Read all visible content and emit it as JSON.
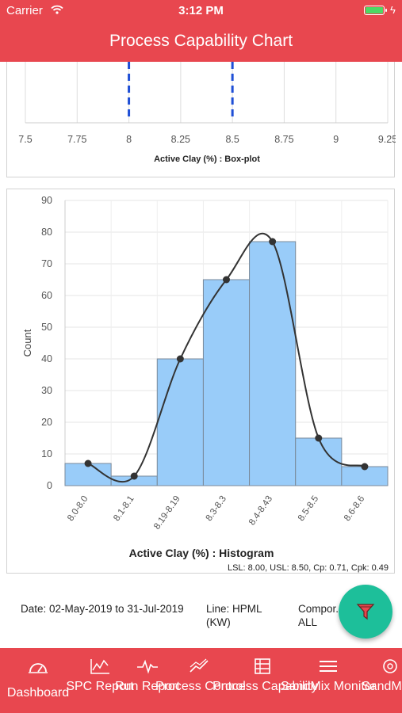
{
  "status_bar": {
    "carrier": "Carrier",
    "time": "3:12 PM"
  },
  "header": {
    "title": "Process Capability Chart"
  },
  "boxplot": {
    "ticks": [
      "7.5",
      "7.75",
      "8",
      "8.25",
      "8.5",
      "8.75",
      "9",
      "9.25"
    ],
    "tick_values": [
      7.5,
      7.75,
      8,
      8.25,
      8.5,
      8.75,
      9,
      9.25
    ],
    "limit_lines": [
      8,
      8.5
    ],
    "xlabel": "Active Clay (%) : Box-plot",
    "colors": {
      "limit": "#1f4fd6",
      "grid": "#dddddd"
    }
  },
  "chart_data": {
    "type": "bar",
    "categories": [
      "8.0-8.0",
      "8.1-8.1",
      "8.19-8.19",
      "8.3-8.3",
      "8.4-8.43",
      "8.5-8.5",
      "8.6-8.6"
    ],
    "values": [
      7,
      3,
      40,
      65,
      77,
      15,
      6
    ],
    "xlabel": "Active Clay (%) : Histogram",
    "ylabel": "Count",
    "ylim": [
      0,
      90
    ],
    "yticks": [
      0,
      10,
      20,
      30,
      40,
      50,
      60,
      70,
      80,
      90
    ],
    "grid": true,
    "overlay": "smooth curve through bar tops",
    "stats": "LSL: 8.00, USL: 8.50, Cp: 0.71, Cpk: 0.49",
    "colors": {
      "bar": "#99ccf9",
      "bar_edge": "#7a8a9a",
      "curve": "#333333"
    }
  },
  "info": {
    "date": "Date: 02-May-2019 to 31-Jul-2019",
    "line": "Line: HPML (KW)",
    "component": "Compor... ALL"
  },
  "fab": {
    "icon": "filter-icon",
    "color": "#1dbf9a"
  },
  "tabs": [
    {
      "label": "Dashboard",
      "icon": "speedometer-icon"
    },
    {
      "label": "SPC Report",
      "icon": "chart-lines-icon"
    },
    {
      "label": "Run Report",
      "icon": "pulse-icon"
    },
    {
      "label": "Process Control",
      "icon": "trend-icon"
    },
    {
      "label": "Process Capability",
      "icon": "capability-icon",
      "active": true
    },
    {
      "label": "SandMix Monitor",
      "icon": "menu-icon"
    },
    {
      "label": "SandMix Analytics",
      "icon": "gear-icon"
    }
  ],
  "colors": {
    "accent": "#e8474f"
  }
}
